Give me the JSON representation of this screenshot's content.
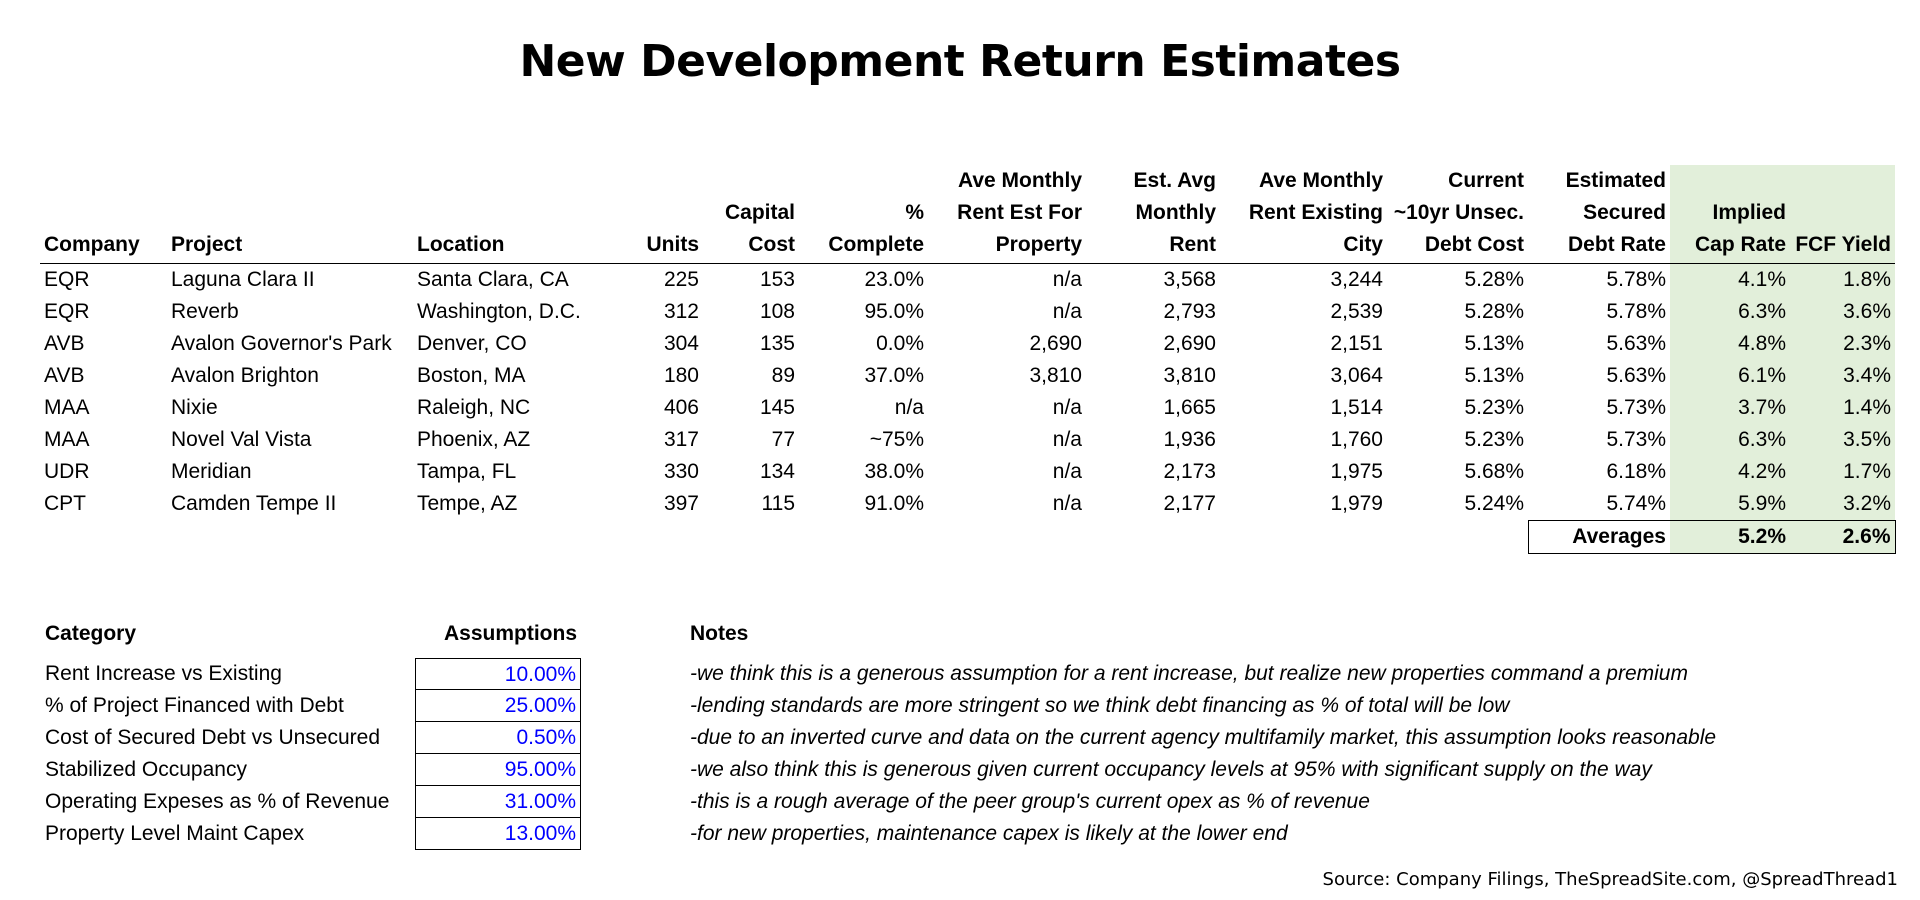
{
  "title": "New Development Return Estimates",
  "table": {
    "headers": [
      [
        "Company"
      ],
      [
        "Project"
      ],
      [
        "Location"
      ],
      [
        "Units"
      ],
      [
        "Capital",
        "Cost"
      ],
      [
        "%",
        "Complete"
      ],
      [
        "Ave Monthly",
        "Rent Est For",
        "Property"
      ],
      [
        "Est. Avg",
        "Monthly",
        "Rent"
      ],
      [
        "Ave Monthly",
        "Rent Existing",
        "City"
      ],
      [
        "Current",
        "~10yr Unsec.",
        "Debt Cost"
      ],
      [
        "Estimated",
        "Secured",
        "Debt Rate"
      ],
      [
        "Implied",
        "Cap Rate"
      ],
      [
        "FCF Yield"
      ]
    ],
    "rows": [
      [
        "EQR",
        "Laguna Clara II",
        "Santa Clara, CA",
        "225",
        "153",
        "23.0%",
        "n/a",
        "3,568",
        "3,244",
        "5.28%",
        "5.78%",
        "4.1%",
        "1.8%"
      ],
      [
        "EQR",
        "Reverb",
        "Washington, D.C.",
        "312",
        "108",
        "95.0%",
        "n/a",
        "2,793",
        "2,539",
        "5.28%",
        "5.78%",
        "6.3%",
        "3.6%"
      ],
      [
        "AVB",
        "Avalon Governor's Park",
        "Denver, CO",
        "304",
        "135",
        "0.0%",
        "2,690",
        "2,690",
        "2,151",
        "5.13%",
        "5.63%",
        "4.8%",
        "2.3%"
      ],
      [
        "AVB",
        "Avalon Brighton",
        "Boston, MA",
        "180",
        "89",
        "37.0%",
        "3,810",
        "3,810",
        "3,064",
        "5.13%",
        "5.63%",
        "6.1%",
        "3.4%"
      ],
      [
        "MAA",
        "Nixie",
        "Raleigh, NC",
        "406",
        "145",
        "n/a",
        "n/a",
        "1,665",
        "1,514",
        "5.23%",
        "5.73%",
        "3.7%",
        "1.4%"
      ],
      [
        "MAA",
        "Novel Val Vista",
        "Phoenix, AZ",
        "317",
        "77",
        "~75%",
        "n/a",
        "1,936",
        "1,760",
        "5.23%",
        "5.73%",
        "6.3%",
        "3.5%"
      ],
      [
        "UDR",
        "Meridian",
        "Tampa, FL",
        "330",
        "134",
        "38.0%",
        "n/a",
        "2,173",
        "1,975",
        "5.68%",
        "6.18%",
        "4.2%",
        "1.7%"
      ],
      [
        "CPT",
        "Camden Tempe II",
        "Tempe, AZ",
        "397",
        "115",
        "91.0%",
        "n/a",
        "2,177",
        "1,979",
        "5.24%",
        "5.74%",
        "5.9%",
        "3.2%"
      ]
    ],
    "averages": {
      "label": "Averages",
      "cap_rate": "5.2%",
      "fcf_yield": "2.6%"
    }
  },
  "assumptions": {
    "category_header": "Category",
    "assumptions_header": "Assumptions",
    "notes_header": "Notes",
    "items": [
      {
        "category": "Rent Increase vs Existing",
        "value": "10.00%",
        "note": "-we think this is a generous assumption for a rent increase, but realize new properties command a premium"
      },
      {
        "category": "% of Project Financed with Debt",
        "value": "25.00%",
        "note": "-lending standards are more stringent so we think debt financing as % of total will be low"
      },
      {
        "category": "Cost of Secured Debt vs Unsecured",
        "value": "0.50%",
        "note": "-due to an inverted curve and data on the current agency multifamily market, this assumption looks reasonable"
      },
      {
        "category": "Stabilized Occupancy",
        "value": "95.00%",
        "note": "-we also think this is generous given current occupancy levels at 95% with significant supply on the way"
      },
      {
        "category": "Operating Expeses as % of Revenue",
        "value": "31.00%",
        "note": "-this is a rough average of the peer group's current opex as % of revenue"
      },
      {
        "category": "Property Level Maint Capex",
        "value": "13.00%",
        "note": "-for new properties, maintenance capex is likely at the lower end"
      }
    ],
    "value_color": "#0000ff",
    "highlight_color": "#e2efda"
  },
  "source": "Source: Company Filings, TheSpreadSite.com, @SpreadThread1"
}
